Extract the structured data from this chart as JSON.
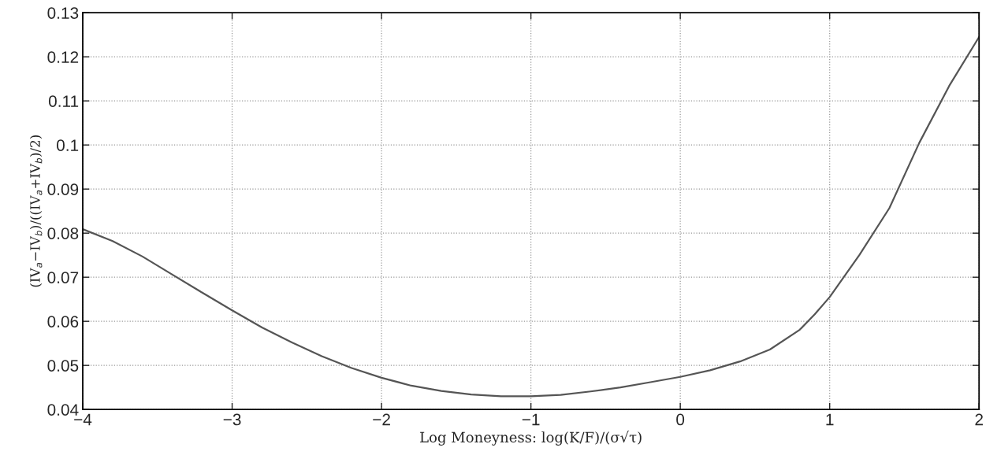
{
  "chart_data": {
    "type": "line",
    "xlabel": "Log Moneyness: log(K/F)/(σ√τ)",
    "ylabel": "(IV$_{a}$−IV$_{b}$)/((IV$_{a}$+IV$_{b}$)/2)",
    "x": [
      -4,
      -3.8,
      -3.6,
      -3.4,
      -3.2,
      -3.0,
      -2.8,
      -2.6,
      -2.4,
      -2.2,
      -2.0,
      -1.8,
      -1.6,
      -1.4,
      -1.2,
      -1.0,
      -0.8,
      -0.6,
      -0.4,
      -0.2,
      0,
      0.2,
      0.4,
      0.6,
      0.8,
      0.9,
      1.0,
      1.2,
      1.4,
      1.6,
      1.8,
      2.0
    ],
    "series": [
      {
        "color": "#555555",
        "values": [
          0.0809,
          0.0782,
          0.0747,
          0.0706,
          0.0665,
          0.0625,
          0.0586,
          0.0552,
          0.0521,
          0.0494,
          0.0472,
          0.0454,
          0.0442,
          0.0434,
          0.043,
          0.043,
          0.0433,
          0.0441,
          0.045,
          0.0462,
          0.0474,
          0.0489,
          0.0509,
          0.0536,
          0.0581,
          0.0616,
          0.0655,
          0.0751,
          0.0857,
          0.1005,
          0.1134,
          0.1245
        ]
      }
    ],
    "xlim": [
      -4,
      2
    ],
    "xticks": [
      {
        "value": -4,
        "label": "−4"
      },
      {
        "value": -3,
        "label": "−3"
      },
      {
        "value": -2,
        "label": "−2"
      },
      {
        "value": -1,
        "label": "−1"
      },
      0,
      1,
      2
    ],
    "ylim": [
      0.04,
      0.13
    ],
    "yticks": [
      0.04,
      0.05,
      0.06,
      0.07,
      0.08,
      0.09,
      0.1,
      0.11,
      0.12,
      0.13
    ],
    "grid": true,
    "marker": "none",
    "line_style": "solid",
    "legend": false
  }
}
